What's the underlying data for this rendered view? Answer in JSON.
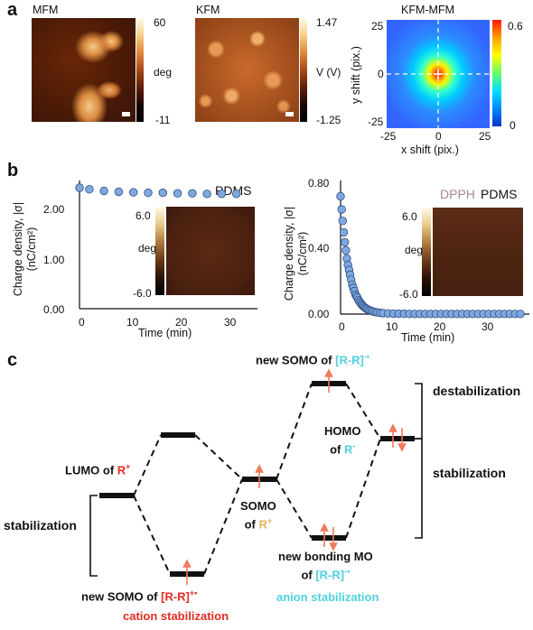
{
  "panel_a": {
    "label": "a",
    "mfm": {
      "title": "MFM",
      "cb_max": "60",
      "cb_unit": "deg",
      "cb_min": "-11"
    },
    "kfm": {
      "title": "KFM",
      "cb_max": "1.47",
      "cb_unit": "V (V)",
      "cb_min": "-1.25"
    },
    "xcorr": {
      "title": "KFM-MFM",
      "xlabel": "x shift (pix.)",
      "ylabel": "y shift (pix.)",
      "xticks": [
        "-25",
        "0",
        "25"
      ],
      "yticks": [
        "25",
        "0",
        "-25"
      ],
      "cb_max": "0.6",
      "cb_min": "0"
    }
  },
  "panel_b": {
    "label": "b",
    "left": {
      "series_label": "PDMS",
      "ylabel_line1": "Charge density, |σ|",
      "ylabel_line2": "(nC/cm²)",
      "xlabel": "Time (min)",
      "yticks": [
        "2.00",
        "1.00",
        "0.00"
      ],
      "xticks": [
        "0",
        "10",
        "20",
        "30"
      ],
      "inset": {
        "max": "6.0",
        "unit": "deg",
        "min": "-6.0"
      }
    },
    "right": {
      "label_dpph": "DPPH",
      "label_pdms": "PDMS",
      "ylabel_line1": "Charge density, |σ|",
      "ylabel_line2": "(nC/cm²)",
      "xlabel": "Time (min)",
      "yticks": [
        "0.80",
        "0.40",
        "0.00"
      ],
      "xticks": [
        "0",
        "10",
        "20",
        "30"
      ],
      "inset": {
        "max": "6.0",
        "unit": "deg",
        "min": "-6.0"
      }
    }
  },
  "chart_data": [
    {
      "type": "scatter",
      "x": [
        0,
        2,
        5,
        8,
        11,
        14,
        17,
        20,
        23,
        26,
        29,
        32
      ],
      "y": [
        2.36,
        2.33,
        2.3,
        2.28,
        2.27,
        2.26,
        2.26,
        2.25,
        2.25,
        2.24,
        2.24,
        2.24
      ],
      "xlabel": "Time (min)",
      "ylabel": "Charge density, |σ| (nC/cm²)",
      "xlim": [
        0,
        35
      ],
      "ylim": [
        0,
        2.5
      ],
      "color": "#7fa9de"
    },
    {
      "type": "scatter",
      "x": [
        0,
        0.2,
        0.4,
        0.6,
        0.8,
        1.0,
        1.2,
        1.4,
        1.6,
        1.8,
        2.0,
        2.2,
        2.4,
        2.6,
        2.8,
        3.0,
        3.2,
        3.4,
        3.6,
        3.8,
        4.0,
        4.2,
        4.4,
        4.6,
        4.8,
        5.0,
        5.3,
        5.6,
        5.9,
        6.2,
        6.6,
        7,
        7.5,
        8,
        9,
        10,
        11,
        12,
        13,
        14,
        15,
        16,
        17,
        18,
        19,
        20,
        21,
        22,
        23,
        24,
        25,
        26,
        27,
        28,
        29,
        30,
        31,
        32,
        33,
        34
      ],
      "y": [
        0.72,
        0.64,
        0.57,
        0.5,
        0.44,
        0.39,
        0.34,
        0.3,
        0.27,
        0.24,
        0.21,
        0.18,
        0.16,
        0.14,
        0.12,
        0.11,
        0.1,
        0.085,
        0.075,
        0.066,
        0.058,
        0.051,
        0.045,
        0.04,
        0.035,
        0.031,
        0.026,
        0.022,
        0.018,
        0.015,
        0.012,
        0.01,
        0.008,
        0.006,
        0.004,
        0.003,
        0.002,
        0.002,
        0.001,
        0.001,
        0.001,
        0.001,
        0.001,
        0.001,
        0.001,
        0.001,
        0.001,
        0.001,
        0.001,
        0.001,
        0.001,
        0.001,
        0.001,
        0.001,
        0.001,
        0.001,
        0.001,
        0.001,
        0.001,
        0.001
      ],
      "xlabel": "Time (min)",
      "ylabel": "Charge density, |σ| (nC/cm²)",
      "xlim": [
        0,
        35
      ],
      "ylim": [
        0,
        0.8
      ],
      "color": "#7fa9de"
    }
  ],
  "panel_c": {
    "label": "c",
    "lumo_prefix": "LUMO of ",
    "lumo_species": "R",
    "lumo_sup": "+",
    "somo_line1": "SOMO",
    "somo_prefix": "of ",
    "somo_species": "R",
    "somo_sup": "+",
    "new_somo_top_prefix": "new SOMO of ",
    "new_somo_top_species": "[R-R]",
    "new_somo_top_sup": "-•",
    "homo_line1": "HOMO",
    "homo_prefix": "of ",
    "homo_species": "R",
    "homo_sup": "-",
    "destab": "destabilization",
    "stab_right": "stabilization",
    "stab_left": "stabilization",
    "new_somo_bottom_prefix": "new SOMO of ",
    "new_somo_bottom_species": "[R-R]",
    "new_somo_bottom_sup": "+•",
    "cation_stab": "cation stabilization",
    "new_bonding_line1": "new bonding  MO",
    "new_bonding_prefix": "of ",
    "new_bonding_species": "[R-R]",
    "new_bonding_sup": "-•",
    "anion_stab": "anion stabilization",
    "colors": {
      "red": "#e32b22",
      "cyan": "#4fd1de",
      "gold": "#e0b85a",
      "arrow": "#f07a5a"
    }
  }
}
